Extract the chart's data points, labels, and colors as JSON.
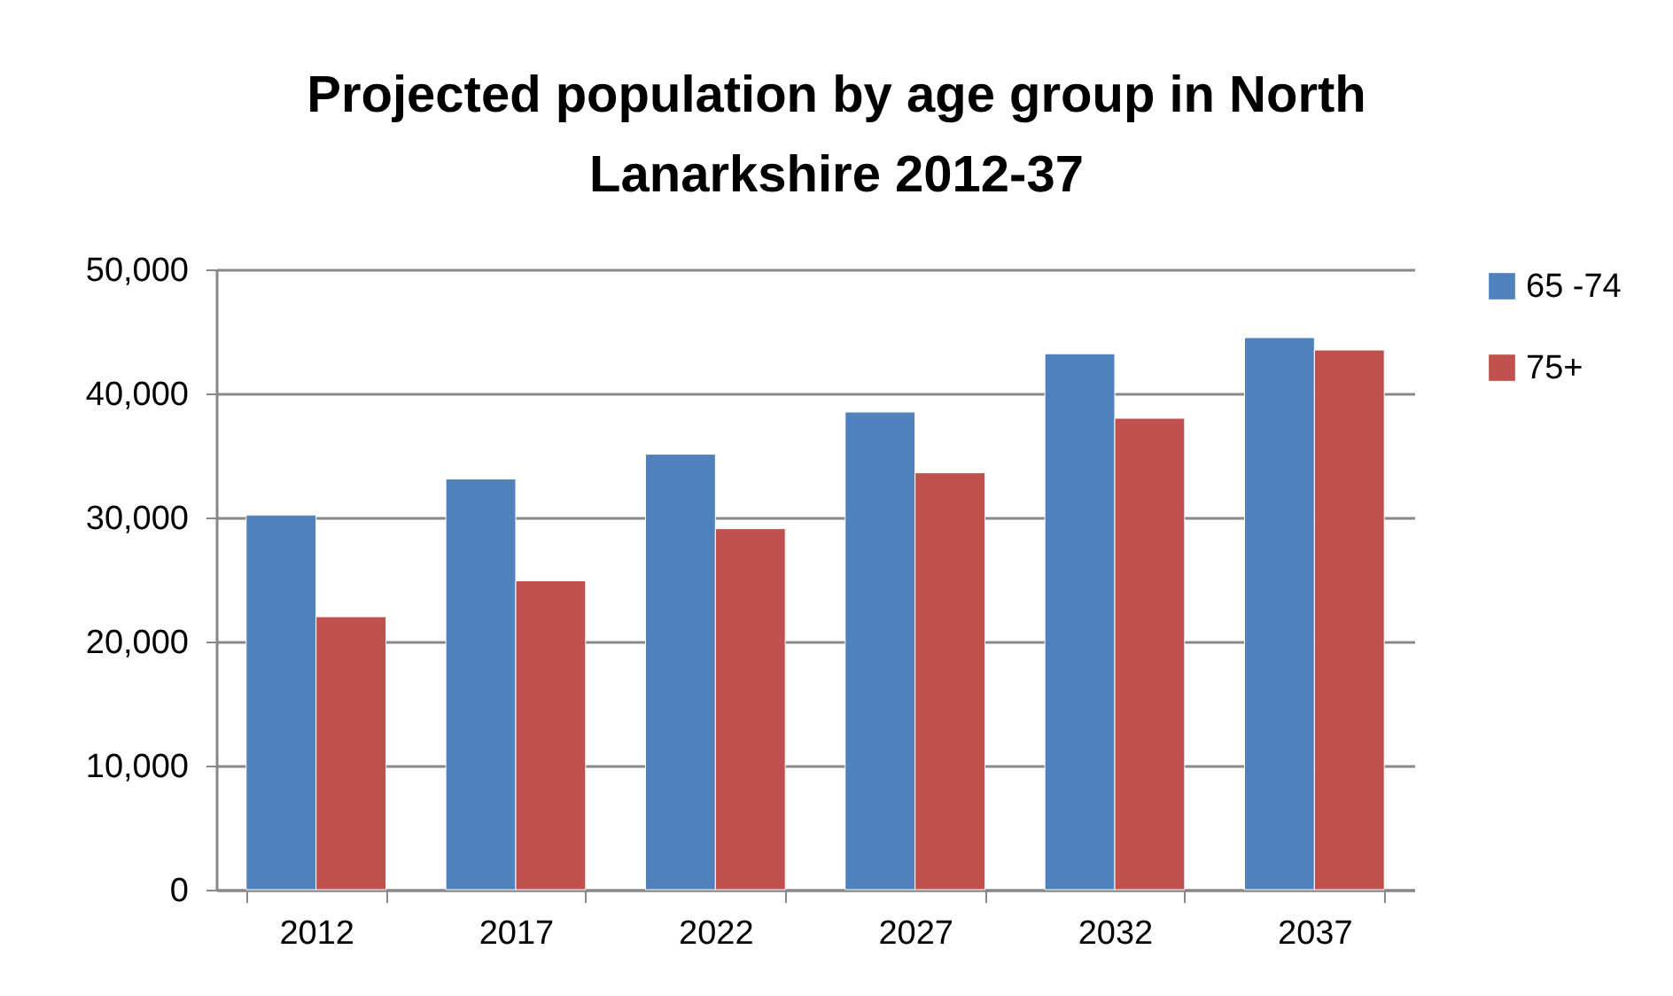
{
  "chart_data": {
    "type": "bar",
    "title": "Projected population by age group in North Lanarkshire 2012-37",
    "categories": [
      "2012",
      "2017",
      "2022",
      "2027",
      "2032",
      "2037"
    ],
    "series": [
      {
        "name": "65 -74",
        "color": "#4f81bd",
        "values": [
          30200,
          33100,
          35100,
          38500,
          43200,
          44500
        ]
      },
      {
        "name": "75+",
        "color": "#c0504d",
        "values": [
          22000,
          24900,
          29100,
          33600,
          38000,
          43500
        ]
      }
    ],
    "ylim": [
      0,
      50000
    ],
    "yticks": [
      0,
      {
        "value": 10000,
        "label": "10,000"
      },
      {
        "value": 20000,
        "label": "20,000"
      },
      {
        "value": 30000,
        "label": "30,000"
      },
      {
        "value": 40000,
        "label": "40,000"
      },
      {
        "value": 50000,
        "label": "50,000"
      }
    ],
    "grid": "y",
    "legend": "right"
  }
}
